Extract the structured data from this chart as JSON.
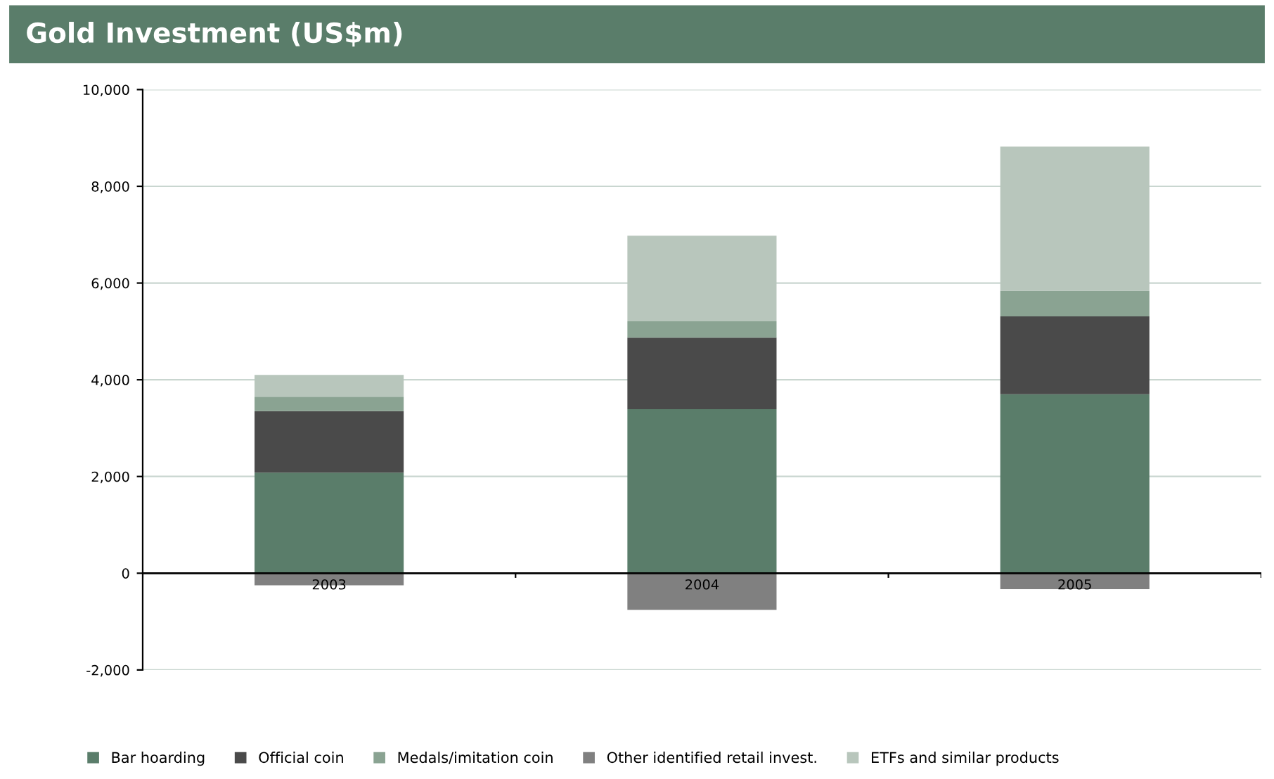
{
  "chart_data": {
    "type": "bar",
    "title": "Gold Investment (US$m)",
    "stacked": true,
    "categories": [
      "2003",
      "2004",
      "2005"
    ],
    "series": [
      {
        "name": "Bar hoarding",
        "color": "#5a7d6a",
        "values": [
          2080,
          3390,
          3700
        ]
      },
      {
        "name": "Official coin",
        "color": "#4a4a4a",
        "values": [
          1270,
          1480,
          1610
        ]
      },
      {
        "name": "Medals/imitation coin",
        "color": "#8aa392",
        "values": [
          300,
          340,
          530
        ]
      },
      {
        "name": "Other identified retail invest.",
        "color": "#808080",
        "values": [
          -250,
          -760,
          -330
        ]
      },
      {
        "name": "ETFs and similar products",
        "color": "#b8c6bc",
        "values": [
          450,
          1770,
          2980
        ]
      }
    ],
    "ylim": [
      -2000,
      10000
    ],
    "yticks": [
      {
        "value": -2000,
        "label": "-2,000"
      },
      0,
      {
        "value": 2000,
        "label": "2,000"
      },
      {
        "value": 4000,
        "label": "4,000"
      },
      {
        "value": 6000,
        "label": "6,000"
      },
      {
        "value": 8000,
        "label": "8,000"
      },
      {
        "value": 10000,
        "label": "10,000"
      }
    ],
    "grid": "y",
    "legend": "bottom"
  }
}
